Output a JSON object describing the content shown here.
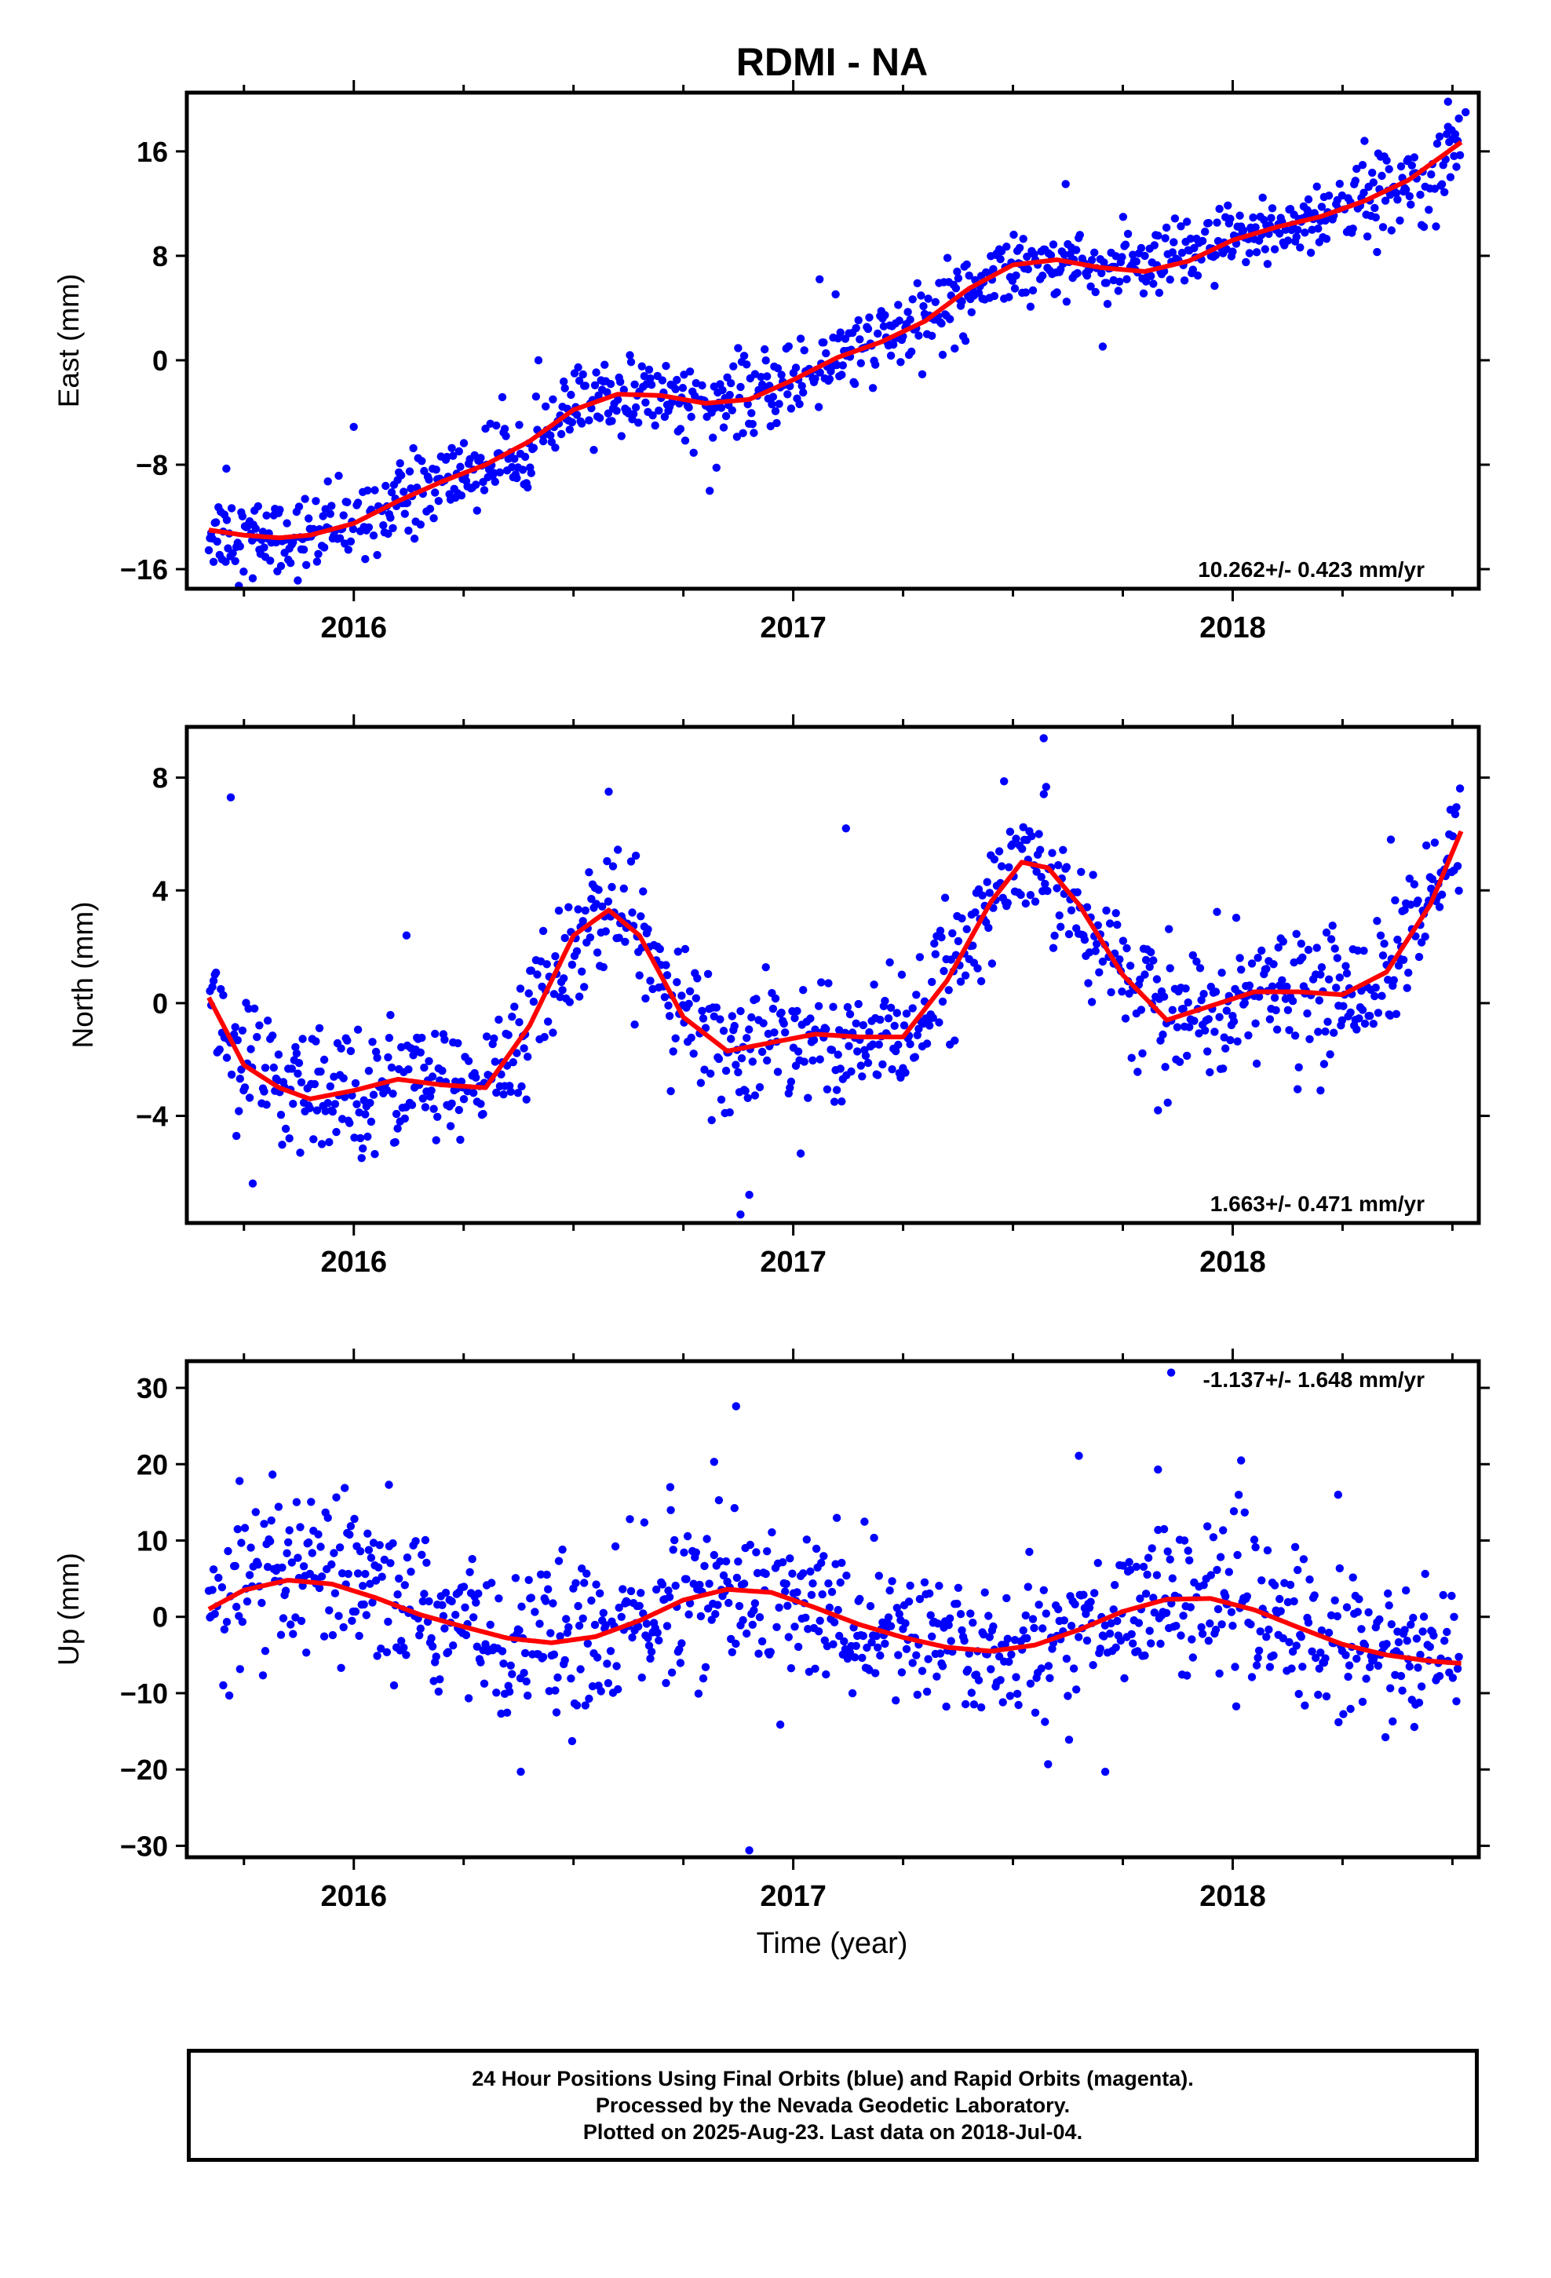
{
  "title": "RDMI - NA",
  "xlabel": "Time (year)",
  "footer": {
    "line1": "24 Hour Positions Using Final Orbits (blue) and Rapid Orbits (magenta).",
    "line2": "Processed by the Nevada Geodetic Laboratory.",
    "line3": "Plotted on 2025-Aug-23. Last data on 2018-Jul-04."
  },
  "colors": {
    "points": "#0000ff",
    "model": "#ff0000",
    "axes": "#000000"
  },
  "chart_data": [
    {
      "type": "scatter",
      "name": "east",
      "ylabel": "East (mm)",
      "rate_label": "10.262+/- 0.423 mm/yr",
      "xlim": [
        2015.62,
        2018.56
      ],
      "ylim": [
        -17.5,
        20.5
      ],
      "yticks": [
        16,
        8,
        0,
        -8,
        -16
      ],
      "ytick_labels": [
        "16",
        "8",
        "0",
        "−8",
        "−16"
      ],
      "xticks": [
        2016,
        2017,
        2018
      ],
      "xtick_labels": [
        "2016",
        "2017",
        "2018"
      ],
      "model_x": [
        2015.67,
        2015.75,
        2015.83,
        2015.9,
        2016.0,
        2016.1,
        2016.2,
        2016.3,
        2016.4,
        2016.5,
        2016.6,
        2016.7,
        2016.8,
        2016.9,
        2017.0,
        2017.1,
        2017.2,
        2017.3,
        2017.4,
        2017.5,
        2017.6,
        2017.7,
        2017.8,
        2017.9,
        2018.0,
        2018.1,
        2018.2,
        2018.3,
        2018.4,
        2018.52
      ],
      "model_y": [
        -13.0,
        -13.4,
        -13.6,
        -13.4,
        -12.5,
        -10.8,
        -9.3,
        -8.0,
        -6.2,
        -3.8,
        -2.6,
        -2.7,
        -3.3,
        -3.0,
        -1.5,
        0.2,
        1.4,
        3.0,
        5.5,
        7.3,
        7.7,
        7.1,
        6.8,
        7.6,
        9.2,
        10.2,
        11.0,
        12.2,
        13.8,
        16.7
      ],
      "scatter_sd": 1.5,
      "outliers": [
        [
          2015.71,
          -8.3
        ],
        [
          2015.77,
          -16.7
        ],
        [
          2016.0,
          -5.1
        ],
        [
          2016.81,
          -10.0
        ],
        [
          2017.06,
          6.2
        ],
        [
          2017.62,
          13.5
        ],
        [
          2018.3,
          16.8
        ],
        [
          2018.49,
          19.8
        ],
        [
          2018.53,
          19.0
        ]
      ]
    },
    {
      "type": "scatter",
      "name": "north",
      "ylabel": "North (mm)",
      "rate_label": "1.663+/- 0.471 mm/yr",
      "xlim": [
        2015.62,
        2018.56
      ],
      "ylim": [
        -7.8,
        9.8
      ],
      "yticks": [
        8,
        4,
        0,
        -4
      ],
      "ytick_labels": [
        "8",
        "4",
        "0",
        "−4"
      ],
      "xticks": [
        2016,
        2017,
        2018
      ],
      "xtick_labels": [
        "2016",
        "2017",
        "2018"
      ],
      "model_x": [
        2015.67,
        2015.75,
        2015.83,
        2015.9,
        2016.0,
        2016.1,
        2016.2,
        2016.3,
        2016.4,
        2016.5,
        2016.58,
        2016.65,
        2016.75,
        2016.85,
        2016.95,
        2017.05,
        2017.15,
        2017.25,
        2017.35,
        2017.45,
        2017.52,
        2017.58,
        2017.65,
        2017.75,
        2017.85,
        2017.95,
        2018.05,
        2018.15,
        2018.25,
        2018.35,
        2018.45,
        2018.52
      ],
      "model_y": [
        0.2,
        -2.2,
        -3.0,
        -3.4,
        -3.1,
        -2.7,
        -2.9,
        -3.0,
        -0.8,
        2.4,
        3.3,
        2.4,
        -0.5,
        -1.7,
        -1.4,
        -1.1,
        -1.2,
        -1.2,
        0.8,
        3.6,
        5.0,
        4.8,
        3.5,
        1.0,
        -0.6,
        -0.1,
        0.4,
        0.4,
        0.3,
        1.1,
        3.5,
        6.1
      ],
      "scatter_sd": 1.1,
      "outliers": [
        [
          2015.72,
          7.3
        ],
        [
          2015.77,
          -6.4
        ],
        [
          2016.12,
          2.4
        ],
        [
          2016.58,
          7.5
        ],
        [
          2016.88,
          -7.5
        ],
        [
          2016.9,
          -6.8
        ],
        [
          2017.12,
          6.2
        ],
        [
          2017.57,
          9.4
        ],
        [
          2017.83,
          -3.8
        ],
        [
          2018.2,
          -3.1
        ],
        [
          2018.36,
          5.8
        ]
      ]
    },
    {
      "type": "scatter",
      "name": "up",
      "ylabel": "Up (mm)",
      "rate_label": "-1.137+/- 1.648 mm/yr",
      "xlim": [
        2015.62,
        2018.56
      ],
      "ylim": [
        -31.5,
        33.5
      ],
      "yticks": [
        30,
        20,
        10,
        0,
        -10,
        -20,
        -30
      ],
      "ytick_labels": [
        "30",
        "20",
        "10",
        "0",
        "−10",
        "−20",
        "−30"
      ],
      "xticks": [
        2016,
        2017,
        2018
      ],
      "xtick_labels": [
        "2016",
        "2017",
        "2018"
      ],
      "model_x": [
        2015.67,
        2015.75,
        2015.85,
        2015.95,
        2016.05,
        2016.15,
        2016.25,
        2016.35,
        2016.45,
        2016.55,
        2016.65,
        2016.75,
        2016.85,
        2016.95,
        2017.05,
        2017.15,
        2017.25,
        2017.35,
        2017.45,
        2017.55,
        2017.65,
        2017.75,
        2017.85,
        2017.95,
        2018.05,
        2018.15,
        2018.25,
        2018.35,
        2018.45,
        2018.52
      ],
      "model_y": [
        1.0,
        3.5,
        4.8,
        4.3,
        2.5,
        0.3,
        -1.3,
        -2.8,
        -3.4,
        -2.6,
        -0.5,
        2.2,
        3.6,
        3.2,
        1.2,
        -1.0,
        -2.7,
        -4.0,
        -4.5,
        -3.7,
        -1.7,
        0.7,
        2.3,
        2.4,
        0.9,
        -1.4,
        -3.6,
        -5.0,
        -5.8,
        -6.1
      ],
      "scatter_sd": 5.0,
      "outliers": [
        [
          2015.74,
          17.8
        ],
        [
          2016.08,
          17.3
        ],
        [
          2016.38,
          -20.3
        ],
        [
          2016.72,
          17.0
        ],
        [
          2016.82,
          20.3
        ],
        [
          2016.87,
          27.6
        ],
        [
          2016.9,
          -30.6
        ],
        [
          2017.58,
          -19.3
        ],
        [
          2017.65,
          21.1
        ],
        [
          2017.71,
          -20.3
        ],
        [
          2017.83,
          19.3
        ],
        [
          2017.86,
          32.0
        ],
        [
          2018.24,
          16.0
        ]
      ]
    }
  ]
}
